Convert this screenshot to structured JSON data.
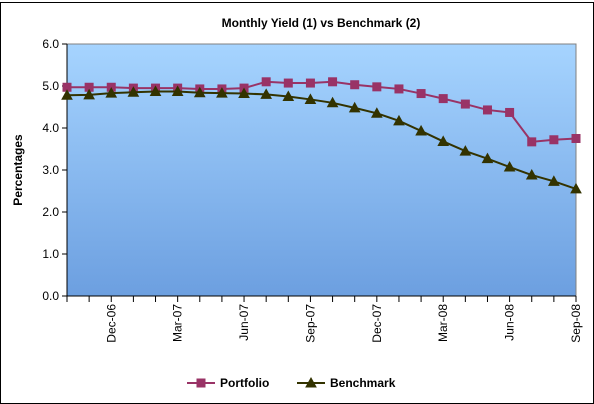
{
  "chart_data": {
    "type": "line",
    "title": "Monthly Yield (1) vs Benchmark (2)",
    "ylabel": "Percentages",
    "categories": [
      null,
      null,
      "Dec-06",
      null,
      null,
      "Mar-07",
      null,
      null,
      "Jun-07",
      null,
      null,
      "Sep-07",
      null,
      null,
      "Dec-07",
      null,
      null,
      "Mar-08",
      null,
      null,
      "Jun-08",
      null,
      null,
      "Sep-08"
    ],
    "series": [
      {
        "name": "Portfolio",
        "color": "#993366",
        "marker": "square",
        "values": [
          4.97,
          4.97,
          4.97,
          4.95,
          4.95,
          4.95,
          4.93,
          4.93,
          4.95,
          5.1,
          5.07,
          5.07,
          5.1,
          5.03,
          4.98,
          4.93,
          4.82,
          4.7,
          4.57,
          4.43,
          4.37,
          3.67,
          3.72,
          3.75
        ]
      },
      {
        "name": "Benchmark",
        "color": "#333300",
        "marker": "triangle",
        "values": [
          4.78,
          4.79,
          4.83,
          4.85,
          4.87,
          4.87,
          4.84,
          4.83,
          4.82,
          4.8,
          4.75,
          4.68,
          4.6,
          4.48,
          4.35,
          4.17,
          3.93,
          3.68,
          3.45,
          3.27,
          3.07,
          2.88,
          2.73,
          2.55
        ]
      }
    ],
    "ylim": [
      0,
      6
    ],
    "yticks": [
      {
        "value": 0,
        "label": "0.0"
      },
      {
        "value": 1,
        "label": "1.0"
      },
      {
        "value": 2,
        "label": "2.0"
      },
      {
        "value": 3,
        "label": "3.0"
      },
      {
        "value": 4,
        "label": "4.0"
      },
      {
        "value": 5,
        "label": "5.0"
      },
      {
        "value": 6,
        "label": "6.0"
      }
    ],
    "legend": "bottom"
  }
}
